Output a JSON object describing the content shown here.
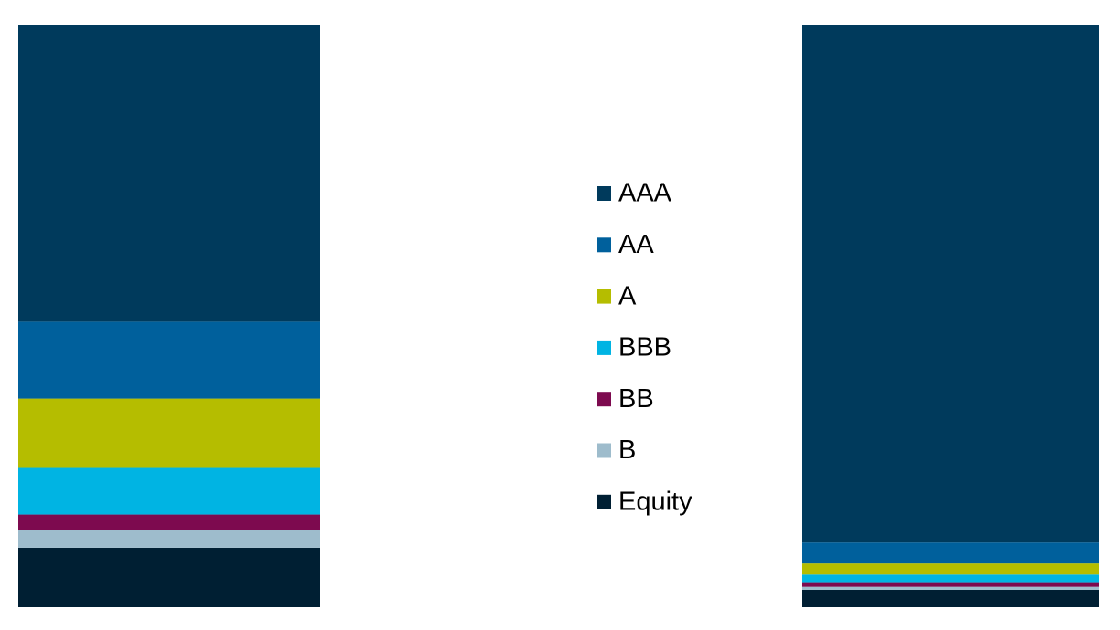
{
  "chart_data": {
    "type": "stacked_bar",
    "categories": [
      null,
      null
    ],
    "ylim": [
      0,
      100
    ],
    "series": [
      {
        "name": "AAA",
        "color": "#003a5c",
        "values": [
          51.0,
          88.9
        ]
      },
      {
        "name": "AA",
        "color": "#00609c",
        "values": [
          13.2,
          3.6
        ]
      },
      {
        "name": "A",
        "color": "#b5bd00",
        "values": [
          11.9,
          1.9
        ]
      },
      {
        "name": "BBB",
        "color": "#00b4e3",
        "values": [
          8.0,
          1.3
        ]
      },
      {
        "name": "BB",
        "color": "#7d0a4f",
        "values": [
          2.7,
          0.8
        ]
      },
      {
        "name": "B",
        "color": "#9ebccc",
        "values": [
          3.0,
          0.5
        ]
      },
      {
        "name": "Equity",
        "color": "#001f33",
        "values": [
          10.2,
          3.0
        ]
      }
    ]
  }
}
